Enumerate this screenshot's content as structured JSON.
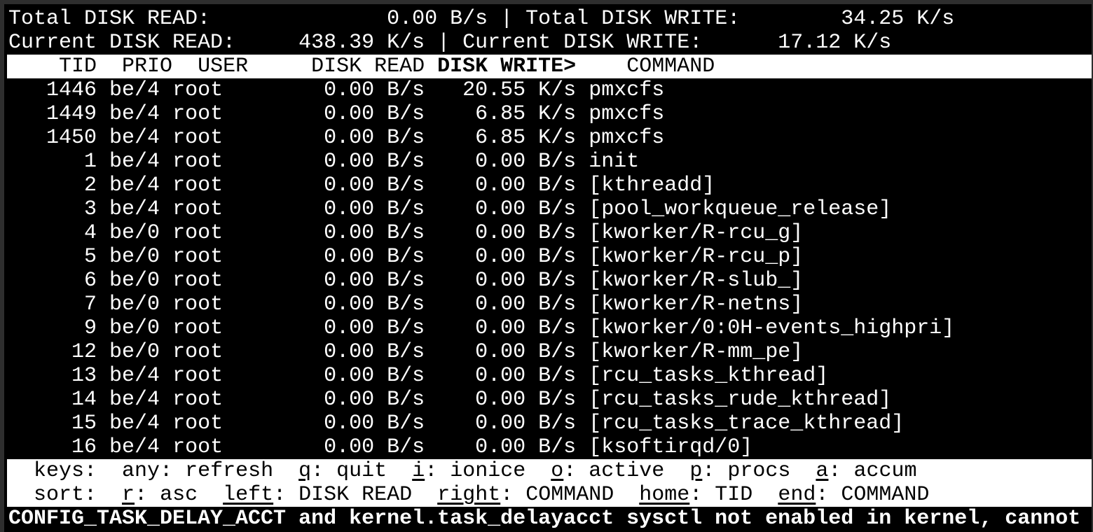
{
  "summary": {
    "total_read_label": "Total DISK READ:",
    "total_read": "0.00 B/s",
    "total_write_label": "Total DISK WRITE:",
    "total_write": "34.25 K/s",
    "current_read_label": "Current DISK READ:",
    "current_read": "438.39 K/s",
    "current_write_label": "Current DISK WRITE:",
    "current_write": "17.12 K/s",
    "separator": "|"
  },
  "columns": {
    "tid": "TID",
    "prio": "PRIO",
    "user": "USER",
    "disk_read": "DISK READ",
    "disk_write": "DISK WRITE>",
    "command": "COMMAND"
  },
  "rows": [
    {
      "tid": "1446",
      "prio": "be/4",
      "user": "root",
      "read": "0.00 B/s",
      "write": "20.55 K/s",
      "command": "pmxcfs"
    },
    {
      "tid": "1449",
      "prio": "be/4",
      "user": "root",
      "read": "0.00 B/s",
      "write": "6.85 K/s",
      "command": "pmxcfs"
    },
    {
      "tid": "1450",
      "prio": "be/4",
      "user": "root",
      "read": "0.00 B/s",
      "write": "6.85 K/s",
      "command": "pmxcfs"
    },
    {
      "tid": "1",
      "prio": "be/4",
      "user": "root",
      "read": "0.00 B/s",
      "write": "0.00 B/s",
      "command": "init"
    },
    {
      "tid": "2",
      "prio": "be/4",
      "user": "root",
      "read": "0.00 B/s",
      "write": "0.00 B/s",
      "command": "[kthreadd]"
    },
    {
      "tid": "3",
      "prio": "be/4",
      "user": "root",
      "read": "0.00 B/s",
      "write": "0.00 B/s",
      "command": "[pool_workqueue_release]"
    },
    {
      "tid": "4",
      "prio": "be/0",
      "user": "root",
      "read": "0.00 B/s",
      "write": "0.00 B/s",
      "command": "[kworker/R-rcu_g]"
    },
    {
      "tid": "5",
      "prio": "be/0",
      "user": "root",
      "read": "0.00 B/s",
      "write": "0.00 B/s",
      "command": "[kworker/R-rcu_p]"
    },
    {
      "tid": "6",
      "prio": "be/0",
      "user": "root",
      "read": "0.00 B/s",
      "write": "0.00 B/s",
      "command": "[kworker/R-slub_]"
    },
    {
      "tid": "7",
      "prio": "be/0",
      "user": "root",
      "read": "0.00 B/s",
      "write": "0.00 B/s",
      "command": "[kworker/R-netns]"
    },
    {
      "tid": "9",
      "prio": "be/0",
      "user": "root",
      "read": "0.00 B/s",
      "write": "0.00 B/s",
      "command": "[kworker/0:0H-events_highpri]"
    },
    {
      "tid": "12",
      "prio": "be/0",
      "user": "root",
      "read": "0.00 B/s",
      "write": "0.00 B/s",
      "command": "[kworker/R-mm_pe]"
    },
    {
      "tid": "13",
      "prio": "be/4",
      "user": "root",
      "read": "0.00 B/s",
      "write": "0.00 B/s",
      "command": "[rcu_tasks_kthread]"
    },
    {
      "tid": "14",
      "prio": "be/4",
      "user": "root",
      "read": "0.00 B/s",
      "write": "0.00 B/s",
      "command": "[rcu_tasks_rude_kthread]"
    },
    {
      "tid": "15",
      "prio": "be/4",
      "user": "root",
      "read": "0.00 B/s",
      "write": "0.00 B/s",
      "command": "[rcu_tasks_trace_kthread]"
    },
    {
      "tid": "16",
      "prio": "be/4",
      "user": "root",
      "read": "0.00 B/s",
      "write": "0.00 B/s",
      "command": "[ksoftirqd/0]"
    }
  ],
  "keys": {
    "label": "keys:",
    "items": [
      {
        "key": "any",
        "desc": "refresh",
        "underline": false
      },
      {
        "key": "q",
        "desc": "quit",
        "underline": true
      },
      {
        "key": "i",
        "desc": "ionice",
        "underline": true
      },
      {
        "key": "o",
        "desc": "active",
        "underline": true
      },
      {
        "key": "p",
        "desc": "procs",
        "underline": true
      },
      {
        "key": "a",
        "desc": "accum",
        "underline": true
      }
    ]
  },
  "sort": {
    "label": "sort:",
    "items": [
      {
        "key": "r",
        "desc": "asc",
        "underline": true
      },
      {
        "key": "left",
        "desc": "DISK READ",
        "underline": true
      },
      {
        "key": "right",
        "desc": "COMMAND",
        "underline": true
      },
      {
        "key": "home",
        "desc": "TID",
        "underline": true
      },
      {
        "key": "end",
        "desc": "COMMAND",
        "underline": true
      }
    ]
  },
  "message": "CONFIG_TASK_DELAY_ACCT and kernel.task_delayacct sysctl not enabled in kernel, cannot",
  "colors": {
    "background": "#000000",
    "foreground": "#ffffff",
    "inverse_bg": "#ffffff"
  }
}
